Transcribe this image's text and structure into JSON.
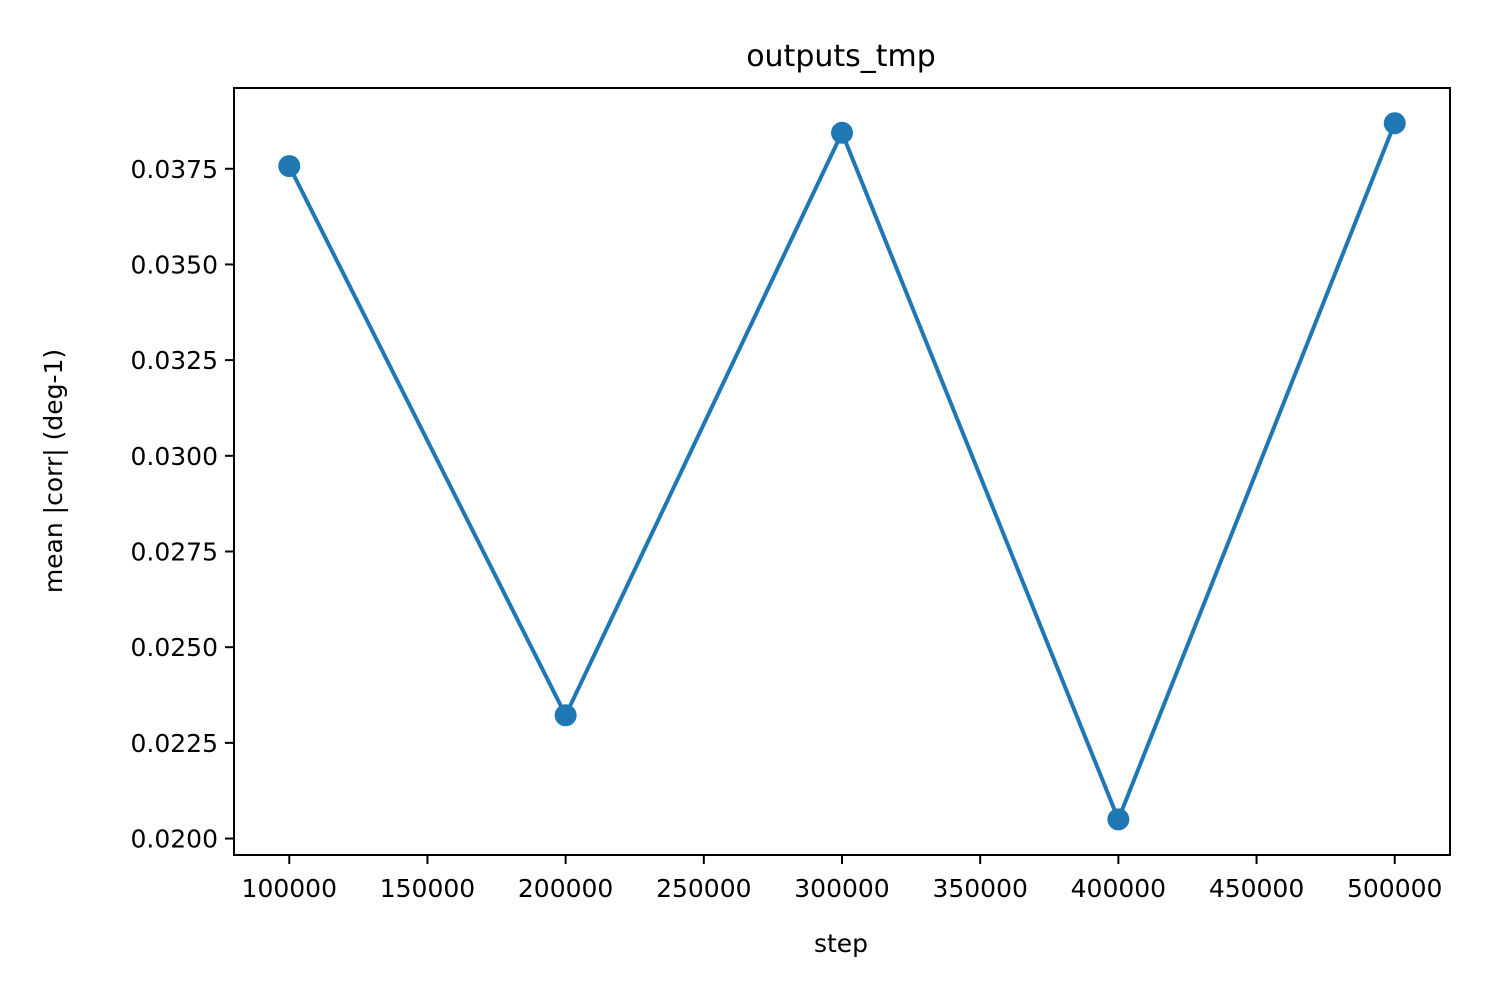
{
  "chart_data": {
    "type": "line",
    "title": "outputs_tmp",
    "xlabel": "step",
    "ylabel": "mean |corr| (deg-1)",
    "x": [
      100000,
      200000,
      300000,
      400000,
      500000
    ],
    "series": [
      {
        "values": [
          0.03757,
          0.02322,
          0.03844,
          0.0205,
          0.03869
        ],
        "color": "#1f77b4",
        "marker": "circle"
      }
    ],
    "xlim": [
      80000,
      520000
    ],
    "ylim": [
      0.01957,
      0.03961
    ],
    "xticks": [
      100000,
      150000,
      200000,
      250000,
      300000,
      350000,
      400000,
      450000,
      500000
    ],
    "xtick_labels": [
      "100000",
      "150000",
      "200000",
      "250000",
      "300000",
      "350000",
      "400000",
      "450000",
      "500000"
    ],
    "yticks": [
      0.02,
      0.0225,
      0.025,
      0.0275,
      0.03,
      0.0325,
      0.035,
      0.0375
    ],
    "ytick_labels": [
      "0.0200",
      "0.0225",
      "0.0250",
      "0.0275",
      "0.0300",
      "0.0325",
      "0.0350",
      "0.0375"
    ],
    "grid": false,
    "legend": "none"
  }
}
